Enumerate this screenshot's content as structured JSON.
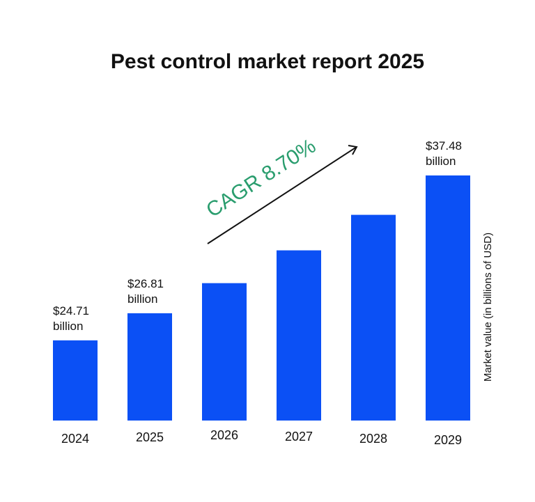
{
  "colors": {
    "bar": "#0b50f5",
    "text": "#111111",
    "cagr": "#2a9d6e",
    "arrow": "#111111",
    "background": "#ffffff"
  },
  "chart_data": {
    "type": "bar",
    "title": "Pest control market report 2025",
    "categories": [
      "2024",
      "2025",
      "2026",
      "2027",
      "2028",
      "2029"
    ],
    "values": [
      24.71,
      26.81,
      29.14,
      31.68,
      34.43,
      37.48
    ],
    "unit": "billions of USD",
    "ylabel": "Market value (in billions of USD)",
    "xlabel": "",
    "data_labels": [
      {
        "category": "2024",
        "value_text": "$24.71",
        "unit_text": "billion"
      },
      {
        "category": "2025",
        "value_text": "$26.81",
        "unit_text": "billion"
      },
      {
        "category": "2029",
        "value_text": "$37.48",
        "unit_text": "billion"
      }
    ],
    "annotation": {
      "text": "CAGR 8.70%",
      "type": "trend-arrow"
    },
    "ylim": [
      18.5,
      37.48
    ],
    "grid": false,
    "legend": "none"
  }
}
